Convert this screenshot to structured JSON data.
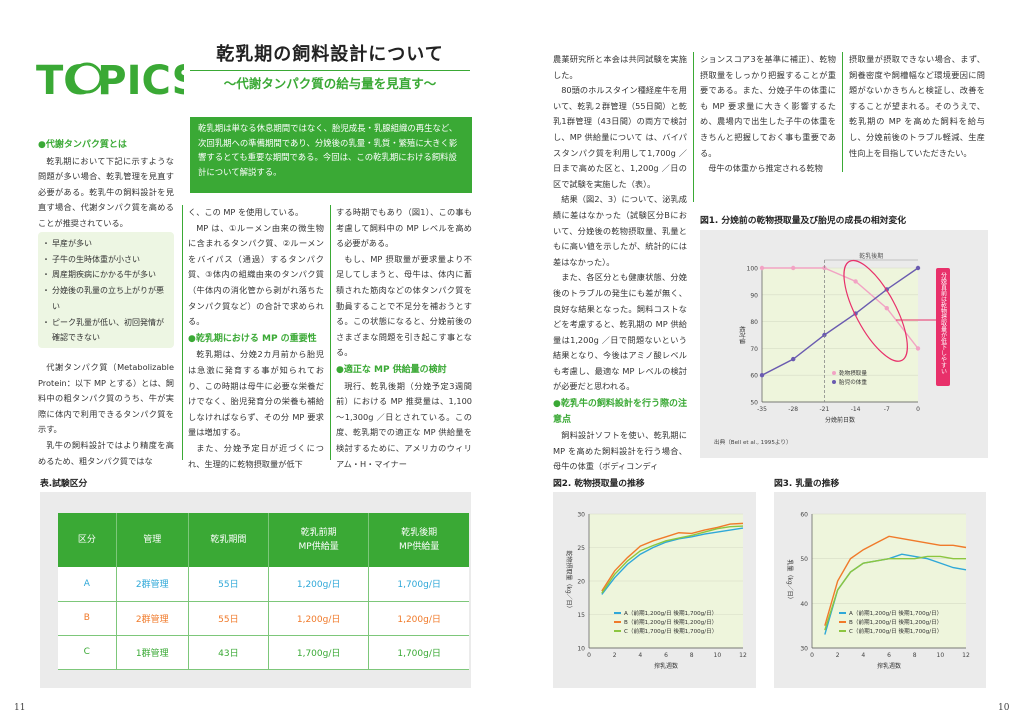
{
  "logo_text": "TOPICS",
  "title": "乾乳期の飼料設計について",
  "subtitle": "～代謝タンパク質の給与量を見直す～",
  "lead": "乾乳期は単なる休息期間ではなく、胎児成長・乳腺組織の再生など、次回乳期への準備期間であり、分娩後の乳量・乳質・繁殖に大きく影響するとても重要な期間である。今回は、この乾乳期における飼料設計について解説する。",
  "col1": {
    "heading": "●代謝タンパク質とは",
    "p1": "乾乳期において下記に示すような問題が多い場合、乾乳管理を見直す必要がある。乾乳牛の飼料設計を見直す場合、代謝タンパク質を高めることが推奨されている。",
    "bullets": [
      "早産が多い",
      "子牛の生時体重が小さい",
      "周産期疾病にかかる牛が多い",
      "分娩後の乳量の立ち上がりが悪い",
      "ピーク乳量が低い、初回発情が確認できない"
    ],
    "p2": "代謝タンパク質（Metabolizable Protein：以下 MP とする）とは、飼料中の粗タンパク質のうち、牛が実際に体内で利用できるタンパク質を示す。",
    "p3": "乳牛の飼料設計ではより精度を高めるため、粗タンパク質ではな"
  },
  "col2": {
    "p1": "く、この MP を使用している。",
    "p2": "MP は、①ルーメン由来の微生物に含まれるタンパク質、②ルーメンをバイパス（通過）するタンパク質、③体内の組織由来のタンパク質（牛体内の消化管から剥がれ落ちたタンパク質など）の合計で求められる。",
    "heading": "●乾乳期における MP の重要性",
    "p3": "乾乳期は、分娩2カ月前から胎児は急激に発育する事が知られており、この時期は母牛に必要な栄養だけでなく、胎児発育分の栄養も補給しなければならず、その分 MP 要求量は増加する。",
    "p4": "また、分娩予定日が近づくにつれ、生理的に乾物摂取量が低下"
  },
  "col3": {
    "p1": "する時期でもあり（図1）、この事も考慮して飼料中の MP レベルを高める必要がある。",
    "p2": "もし、MP 摂取量が要求量より不足してしまうと、母牛は、体内に蓄積された筋肉などの体タンパク質を動員することで不足分を補おうとする。この状態になると、分娩前後のさまざまな問題を引き起こす事となる。",
    "heading": "●適正な MP 供給量の検討",
    "p3": "現行、乾乳後期（分娩予定3週間前）における MP 推奨量は、1,100～1,300g ／日とされている。この度、乾乳期での適正な MP 供給量を検討するために、アメリカのウィリアム・H・マイナー"
  },
  "col4": {
    "p1": "農業研究所と本会は共同試験を実施した。",
    "p2": "80頭のホルスタイン種経産牛を用いて、乾乳２群管理（55日間）と乾乳1群管理（43日間）の両方で検討し、MP 供給量について は、バイパスタンパク質を利用して1,700g ／日まで高めた区と、1,200g ／日の区で試験を実施した（表）。",
    "p3": "結果（図2、3）について、泌乳成績に差はなかった（試験区分Bにおいて、分娩後の乾物摂取量、乳量ともに高い値を示したが、統計的には差はなかった）。",
    "p4": "また、各区分とも健康状態、分娩後のトラブルの発生にも差が無く、良好な結果となった。飼料コストなどを考慮すると、乾乳期の MP 供給量は1,200g ／日で問題ないという結果となり、今後はアミノ酸レベルも考慮し、最適な MP レベルの検討が必要だと思われる。",
    "heading": "●乾乳牛の飼料設計を行う際の注意点",
    "p5": "飼料設計ソフトを使い、乾乳期に MP を高めた飼料設計を行う場合、母牛の体重（ボディコンディ"
  },
  "col5": {
    "p1": "ションスコア3を基準に補正）、乾物摂取量をしっかり把握することが重要である。また、分娩子牛の体重にも MP 要求量に大きく影響するため、農場内で出生した子牛の体重をきちんと把握しておく事も重要である。",
    "p2": "母牛の体重から推定される乾物"
  },
  "col6": {
    "p1": "摂取量が摂取できない場合、まず、飼養密度や飼槽幅など環境要因に問題がないかきちんと検証し、改善をすることが望まれる。そのうえで、乾乳期の MP を高めた飼料を給与し、分娩前後のトラブル軽減、生産性向上を目指していただきたい。"
  },
  "table": {
    "title": "表.試験区分",
    "headers": [
      "区分",
      "管理",
      "乾乳期間",
      "乾乳前期\nMP供給量",
      "乾乳後期\nMP供給量"
    ],
    "rows": [
      [
        "A",
        "2群管理",
        "55日",
        "1,200g/日",
        "1,700g/日"
      ],
      [
        "B",
        "2群管理",
        "55日",
        "1,200g/日",
        "1,200g/日"
      ],
      [
        "C",
        "1群管理",
        "43日",
        "1,700g/日",
        "1,700g/日"
      ]
    ]
  },
  "pages": {
    "left": "11",
    "right": "10"
  },
  "chart_data": [
    {
      "type": "line",
      "title": "図1. 分娩前の乾物摂取量及び胎児の成長の相対変化",
      "xlabel": "分娩前日数",
      "ylabel": "相対値",
      "x": [
        -35,
        -28,
        -21,
        -14,
        -7,
        0
      ],
      "xlim": [
        -35,
        0
      ],
      "ylim": [
        50,
        100
      ],
      "series": [
        {
          "name": "乾物摂取量",
          "color": "#f2a3c4",
          "values": [
            100,
            100,
            100,
            95,
            85,
            70
          ]
        },
        {
          "name": "胎児の体重",
          "color": "#6a5bb0",
          "values": [
            60,
            66,
            75,
            83,
            92,
            100
          ]
        }
      ],
      "annotations": {
        "period": "乾乳後期",
        "callout": "分娩直前は乾物摂取量が低下しやすい"
      },
      "source": "出典（Bell et al., 1995より）"
    },
    {
      "type": "line",
      "title": "図2. 乾物摂取量の推移",
      "xlabel": "搾乳週数",
      "ylabel": "乾物摂取量（kg／日）",
      "x": [
        1,
        2,
        3,
        4,
        5,
        6,
        7,
        8,
        9,
        10,
        11,
        12
      ],
      "xlim": [
        0,
        12
      ],
      "ylim": [
        10,
        30
      ],
      "series": [
        {
          "name": "A（前期1,200g/日 後期1,700g/日）",
          "color": "#2fa8d8",
          "values": [
            18.0,
            20.5,
            22.5,
            24.0,
            25.0,
            25.8,
            26.3,
            26.6,
            27.0,
            27.3,
            27.6,
            27.9
          ]
        },
        {
          "name": "B（前期1,200g/日 後期1,200g/日）",
          "color": "#f07a2a",
          "values": [
            18.5,
            21.5,
            23.5,
            25.2,
            26.0,
            26.6,
            27.2,
            27.1,
            27.6,
            28.0,
            28.5,
            28.6
          ]
        },
        {
          "name": "C（前期1,700g/日 後期1,700g/日）",
          "color": "#8cc63f",
          "values": [
            18.2,
            21.0,
            23.0,
            24.5,
            25.3,
            26.0,
            26.4,
            26.8,
            27.3,
            27.8,
            28.1,
            28.2
          ]
        }
      ]
    },
    {
      "type": "line",
      "title": "図3. 乳量の推移",
      "xlabel": "搾乳週数",
      "ylabel": "乳量（kg／日）",
      "x": [
        1,
        2,
        3,
        4,
        5,
        6,
        7,
        8,
        9,
        10,
        11,
        12
      ],
      "xlim": [
        0,
        12
      ],
      "ylim": [
        30,
        60
      ],
      "series": [
        {
          "name": "A（前期1,200g/日 後期1,700g/日）",
          "color": "#2fa8d8",
          "values": [
            33,
            43,
            47,
            49,
            49.5,
            50,
            51,
            50.5,
            50,
            49,
            48,
            47.5
          ]
        },
        {
          "name": "B（前期1,200g/日 後期1,200g/日）",
          "color": "#f07a2a",
          "values": [
            35,
            45,
            50,
            52,
            53.5,
            55,
            54.5,
            54,
            53.5,
            53,
            53,
            52.5
          ]
        },
        {
          "name": "C（前期1,700g/日 後期1,700g/日）",
          "color": "#8cc63f",
          "values": [
            34,
            43,
            47,
            49,
            49.5,
            50,
            50,
            50,
            50.5,
            50.5,
            50,
            50
          ]
        }
      ]
    }
  ]
}
